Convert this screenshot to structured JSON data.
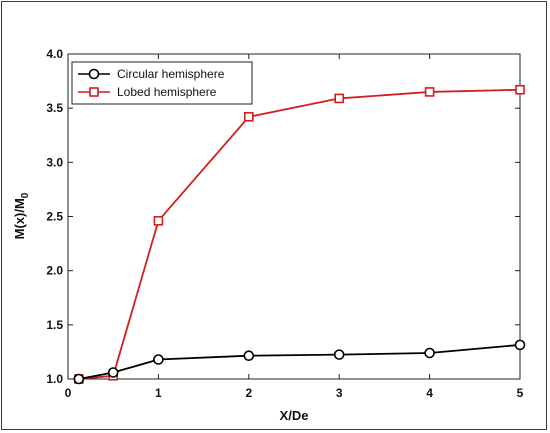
{
  "chart_data": {
    "type": "line",
    "xlabel": "X/De",
    "ylabel": "M(x)/M",
    "ylabel_subscript": "0",
    "xlim": [
      0,
      5
    ],
    "ylim": [
      1.0,
      4.0
    ],
    "xticks": [
      "0",
      "1",
      "2",
      "3",
      "4",
      "5"
    ],
    "yticks": [
      "1.0",
      "1.5",
      "2.0",
      "2.5",
      "3.0",
      "3.5",
      "4.0"
    ],
    "grid": false,
    "legend_position": "top-left",
    "series": [
      {
        "name": "Circular hemisphere",
        "color": "#000000",
        "marker": "circle",
        "x": [
          0.12,
          0.5,
          1,
          2,
          3,
          4,
          5
        ],
        "y": [
          1.0,
          1.06,
          1.18,
          1.215,
          1.225,
          1.24,
          1.315
        ]
      },
      {
        "name": "Lobed hemisphere",
        "color": "#d11f1f",
        "marker": "square",
        "x": [
          0.12,
          0.5,
          1,
          2,
          3,
          4,
          5
        ],
        "y": [
          1.0,
          1.03,
          2.46,
          3.42,
          3.59,
          3.65,
          3.67
        ]
      }
    ]
  }
}
